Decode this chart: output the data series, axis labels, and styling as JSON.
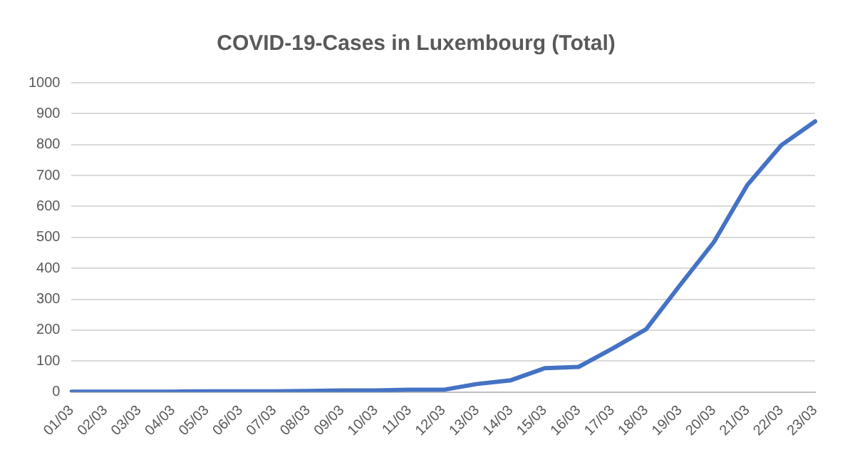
{
  "chart_data": {
    "type": "line",
    "title": "COVID-19-Cases in Luxembourg (Total)",
    "categories": [
      "01/03",
      "02/03",
      "03/03",
      "04/03",
      "05/03",
      "06/03",
      "07/03",
      "08/03",
      "09/03",
      "10/03",
      "11/03",
      "12/03",
      "13/03",
      "14/03",
      "15/03",
      "16/03",
      "17/03",
      "18/03",
      "19/03",
      "20/03",
      "21/03",
      "22/03",
      "23/03"
    ],
    "series": [
      {
        "color": "#4472c4",
        "values": [
          1,
          1,
          1,
          1,
          2,
          2,
          2,
          3,
          5,
          5,
          7,
          7,
          26,
          38,
          77,
          81,
          140,
          203,
          345,
          484,
          670,
          798,
          875
        ]
      }
    ],
    "ylim": [
      0,
      1000
    ],
    "yticks": [
      0,
      100,
      200,
      300,
      400,
      500,
      600,
      700,
      800,
      900,
      1000
    ],
    "grid": "y",
    "legend": false,
    "marker": "none",
    "line_style": "solid"
  }
}
